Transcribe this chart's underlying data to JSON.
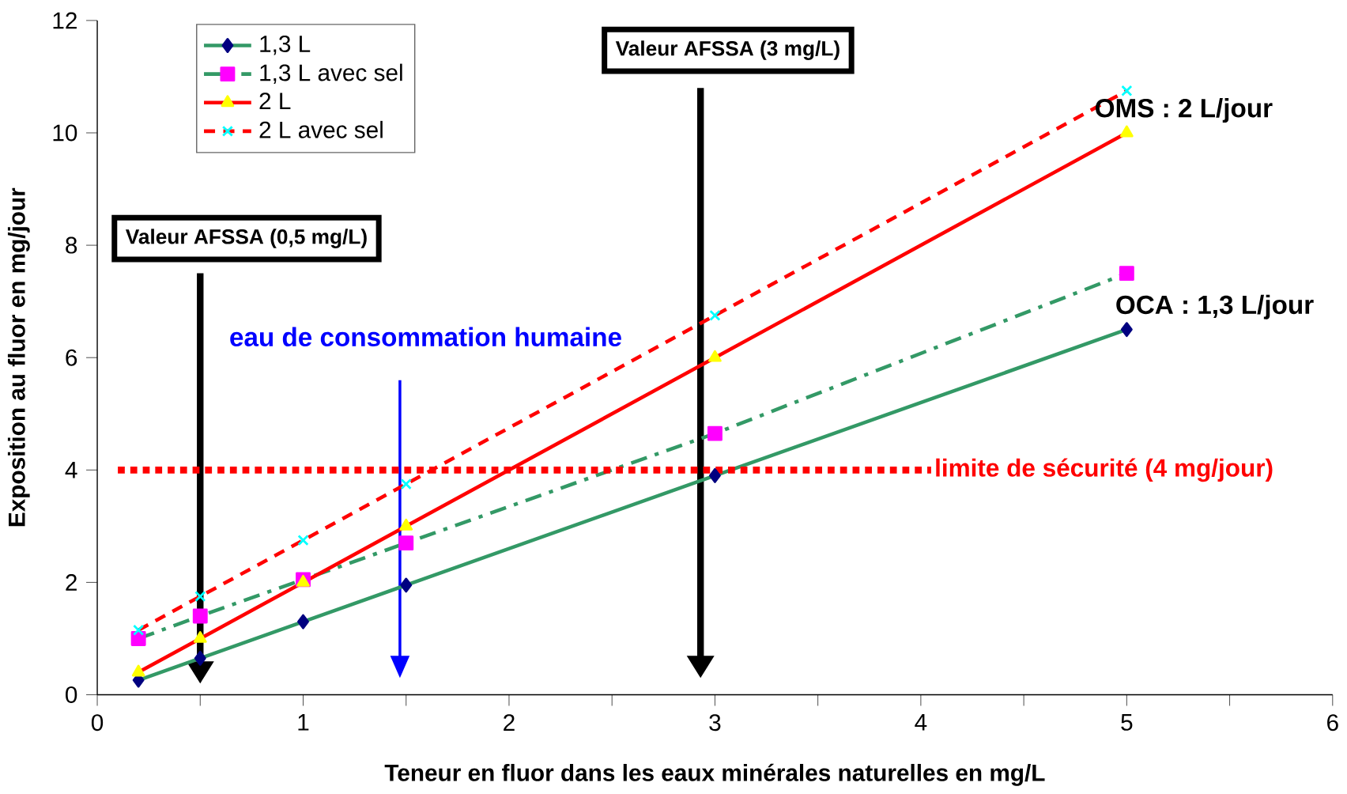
{
  "chart_data": {
    "type": "line",
    "xlabel": "Teneur en fluor dans les eaux minérales naturelles en mg/L",
    "ylabel": "Exposition au fluor en mg/jour",
    "x": [
      0.2,
      0.5,
      1,
      1.5,
      3,
      5
    ],
    "series": [
      {
        "name": "1,3 L",
        "color": "#339966",
        "colors": [
          "#000080",
          "#000080",
          "#000080",
          "#000080",
          "#000080",
          "#000080"
        ],
        "marker": "diamond",
        "line_style": "solid",
        "values": [
          0.26,
          0.65,
          1.3,
          1.95,
          3.9,
          6.5
        ]
      },
      {
        "name": "1,3 L avec sel",
        "color": "#339966",
        "colors": [
          "#ff00ff",
          "#ff00ff",
          "#ff00ff",
          "#ff00ff",
          "#ff00ff",
          "#ff00ff"
        ],
        "marker": "square",
        "line_style": "dashdot",
        "values": [
          1.0,
          1.4,
          2.05,
          2.7,
          4.65,
          7.5
        ]
      },
      {
        "name": "2 L",
        "color": "#ff0000",
        "colors": [
          "#ffff00",
          "#ffff00",
          "#ffff00",
          "#ffff00",
          "#ffff00",
          "#ffff00"
        ],
        "marker": "triangle",
        "line_style": "solid",
        "values": [
          0.4,
          1.0,
          2.0,
          3.0,
          6.0,
          10.0
        ]
      },
      {
        "name": "2 L avec sel",
        "color": "#ff0000",
        "colors": [
          "#00ffff",
          "#00ffff",
          "#00ffff",
          "#00ffff",
          "#00ffff",
          "#00ffff"
        ],
        "marker": "cross",
        "line_style": "dashed",
        "values": [
          1.15,
          1.75,
          2.75,
          3.75,
          6.75,
          10.75
        ]
      }
    ],
    "xlim": [
      0,
      6
    ],
    "xticks": [
      0,
      {
        "value": 0.5,
        "label": null
      },
      1,
      {
        "value": 1.5,
        "label": null
      },
      2,
      {
        "value": 2.5,
        "label": null
      },
      3,
      {
        "value": 3.5,
        "label": null
      },
      4,
      {
        "value": 4.5,
        "label": null
      },
      5,
      {
        "value": 5.5,
        "label": null
      },
      6
    ],
    "ylim": [
      0,
      12
    ],
    "yticks": [
      0,
      2,
      4,
      6,
      8,
      10,
      12
    ],
    "ref_lines": [
      {
        "axis": "y",
        "value": 4,
        "label": "limite de sécurité (4 mg/jour)",
        "color": "#ff0000",
        "line_style": "dotted"
      }
    ],
    "annotations": [
      "Valeur AFSSA (0,5 mg/L)",
      "Valeur AFSSA (3 mg/L)",
      "eau de consommation humaine",
      "OMS : 2 L/jour",
      "OCA : 1,3 L/jour"
    ],
    "legend": "top left"
  }
}
